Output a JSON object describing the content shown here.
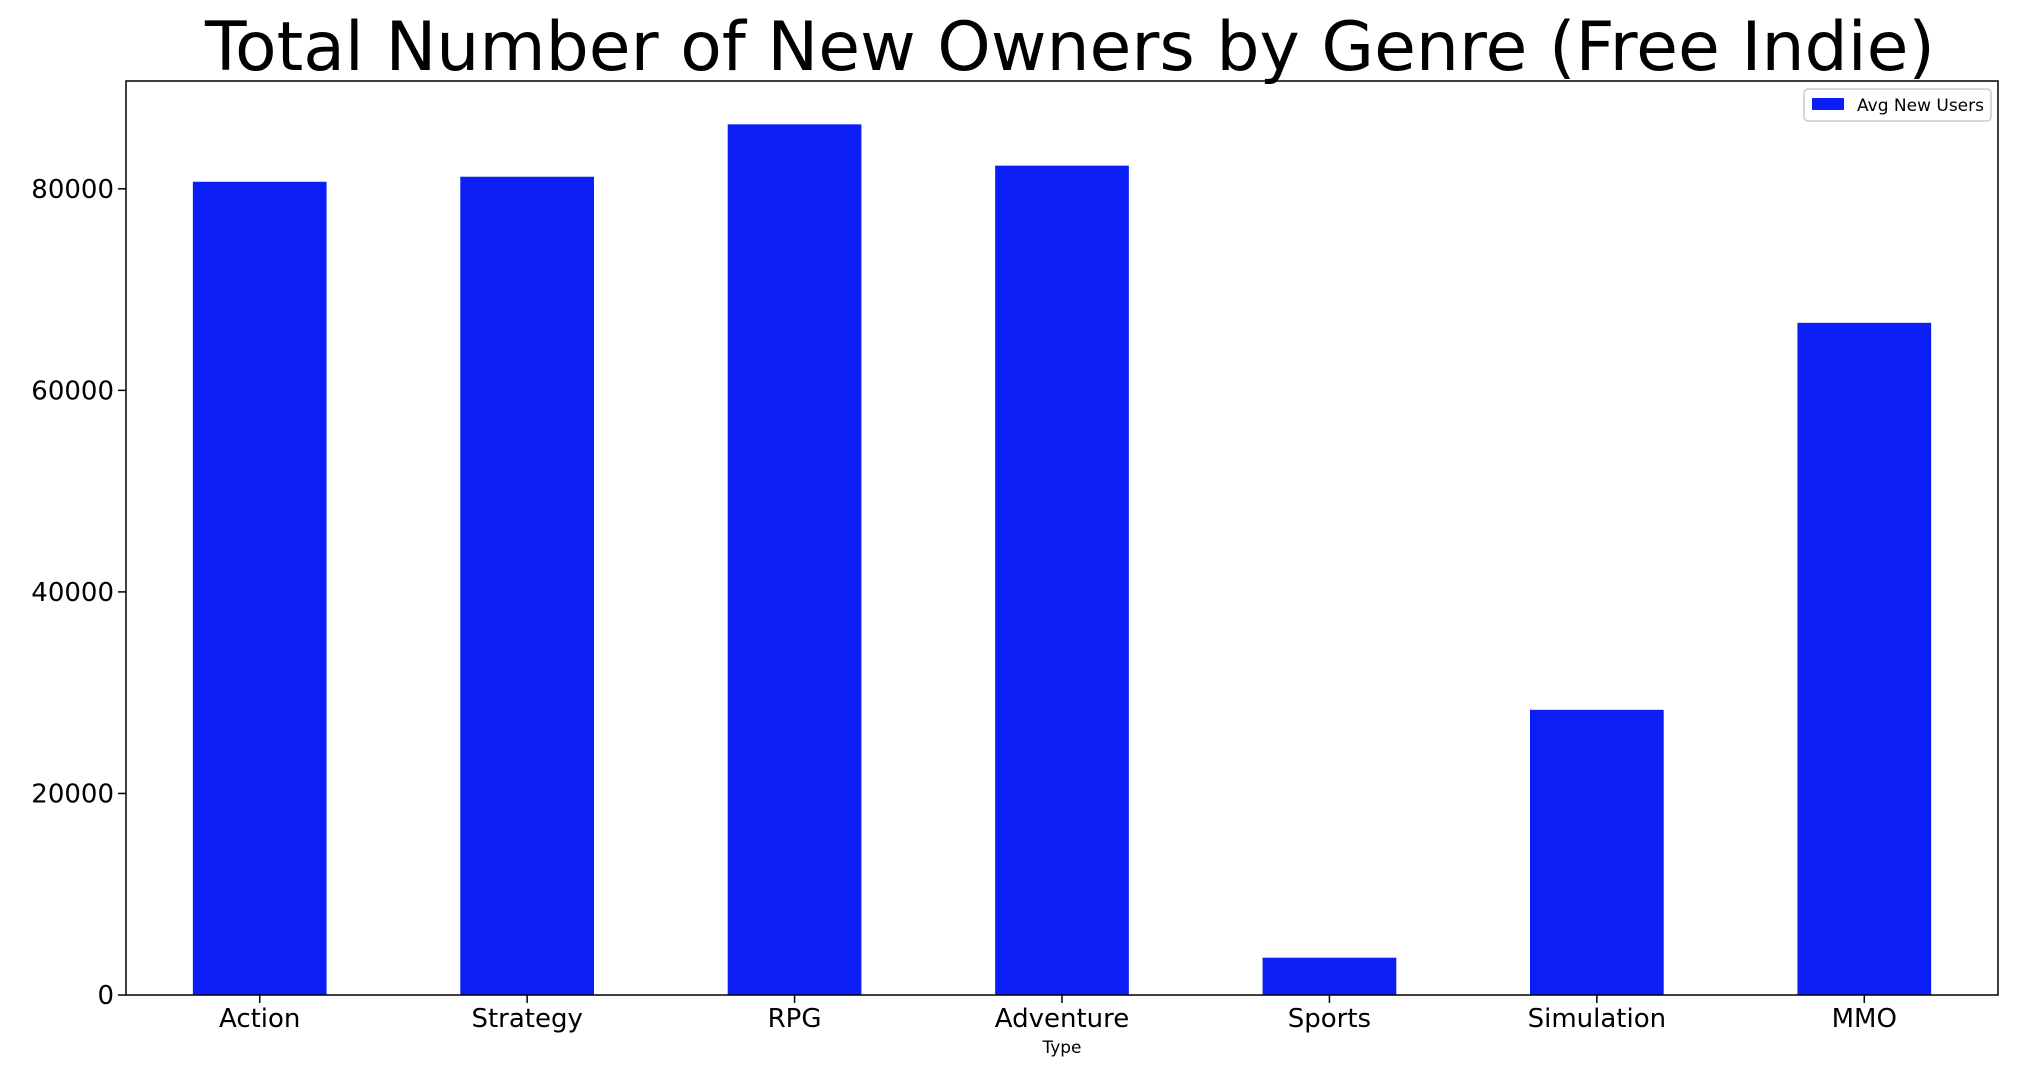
{
  "chart_data": {
    "type": "bar",
    "title": "Total Number of New Owners by Genre (Free Indie)",
    "xlabel": "Type",
    "ylabel": "",
    "categories": [
      "Action",
      "Strategy",
      "RPG",
      "Adventure",
      "Sports",
      "Simulation",
      "MMO"
    ],
    "series": [
      {
        "name": "Avg New Users",
        "values": [
          80700,
          81200,
          86400,
          82300,
          3700,
          28300,
          66700
        ],
        "color": "#0a1ef5"
      }
    ],
    "yticks": [
      0,
      20000,
      40000,
      60000,
      80000
    ],
    "ytick_labels": [
      "0",
      "20000",
      "40000",
      "60000",
      "80000"
    ],
    "ylim": [
      0,
      90700
    ],
    "grid": false,
    "legend_position": "top-right"
  }
}
